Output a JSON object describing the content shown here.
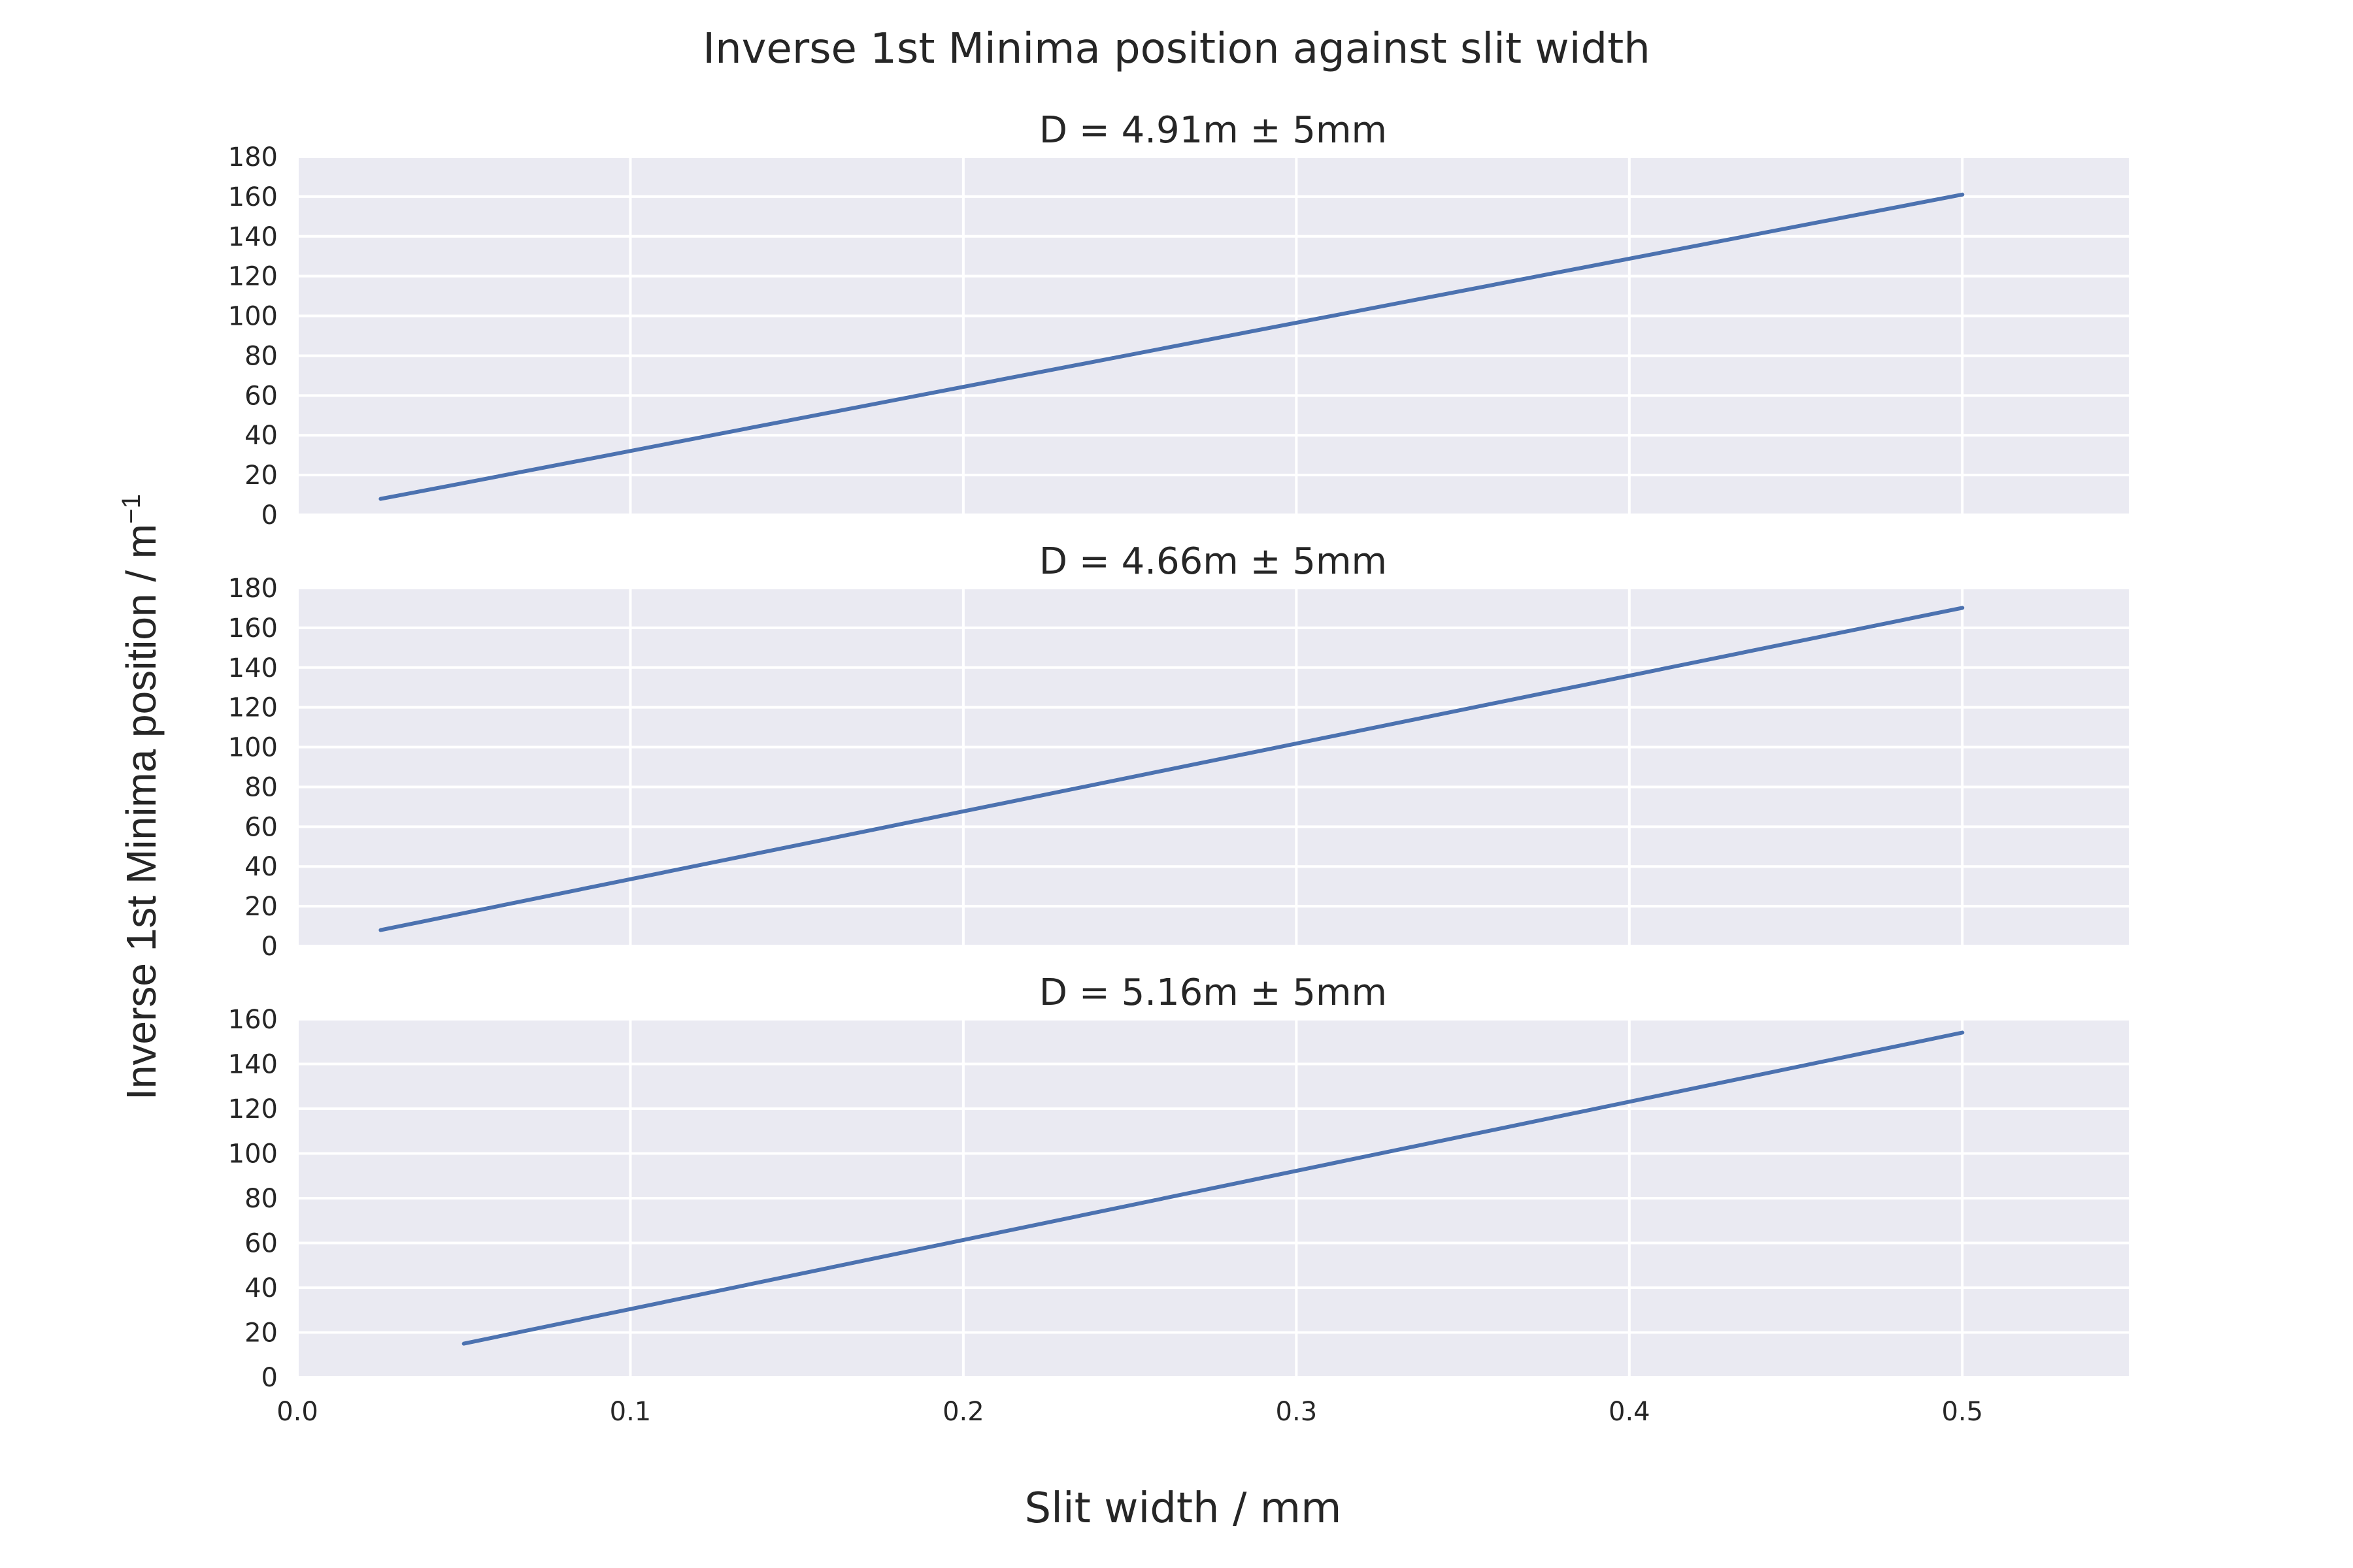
{
  "figure": {
    "title": "Inverse 1st Minima position against slit width",
    "xlabel": "Slit width / mm",
    "ylabel": "Inverse 1st Minima position / m",
    "ylabel_sup": "−1"
  },
  "colors": {
    "line": "#4c72b0",
    "panel_bg": "#eaeaf2",
    "grid": "#ffffff",
    "text": "#262626"
  },
  "chart_data": [
    {
      "type": "line",
      "title": "D = 4.91m ± 5mm",
      "xlim": [
        0.0,
        0.55
      ],
      "ylim": [
        0,
        180
      ],
      "xticks": [
        0.0,
        0.1,
        0.2,
        0.3,
        0.4,
        0.5
      ],
      "xtick_labels": [
        "0.0",
        "0.1",
        "0.2",
        "0.3",
        "0.4",
        "0.5"
      ],
      "yticks": [
        0,
        20,
        40,
        60,
        80,
        100,
        120,
        140,
        160,
        180
      ],
      "show_xtick_labels": false,
      "grid": true,
      "x": [
        0.025,
        0.05,
        0.5
      ],
      "y": [
        8,
        16,
        161
      ]
    },
    {
      "type": "line",
      "title": "D = 4.66m ± 5mm",
      "xlim": [
        0.0,
        0.55
      ],
      "ylim": [
        0,
        180
      ],
      "xticks": [
        0.0,
        0.1,
        0.2,
        0.3,
        0.4,
        0.5
      ],
      "xtick_labels": [
        "0.0",
        "0.1",
        "0.2",
        "0.3",
        "0.4",
        "0.5"
      ],
      "yticks": [
        0,
        20,
        40,
        60,
        80,
        100,
        120,
        140,
        160,
        180
      ],
      "show_xtick_labels": false,
      "grid": true,
      "x": [
        0.025,
        0.5
      ],
      "y": [
        8,
        170
      ]
    },
    {
      "type": "line",
      "title": "D = 5.16m ± 5mm",
      "xlim": [
        0.0,
        0.55
      ],
      "ylim": [
        0,
        160
      ],
      "xticks": [
        0.0,
        0.1,
        0.2,
        0.3,
        0.4,
        0.5
      ],
      "xtick_labels": [
        "0.0",
        "0.1",
        "0.2",
        "0.3",
        "0.4",
        "0.5"
      ],
      "yticks": [
        0,
        20,
        40,
        60,
        80,
        100,
        120,
        140,
        160
      ],
      "show_xtick_labels": true,
      "grid": true,
      "x": [
        0.05,
        0.5
      ],
      "y": [
        15,
        154
      ]
    }
  ]
}
